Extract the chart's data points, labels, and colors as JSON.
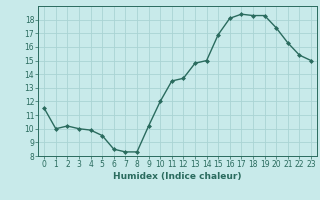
{
  "x": [
    0,
    1,
    2,
    3,
    4,
    5,
    6,
    7,
    8,
    9,
    10,
    11,
    12,
    13,
    14,
    15,
    16,
    17,
    18,
    19,
    20,
    21,
    22,
    23
  ],
  "y": [
    11.5,
    10.0,
    10.2,
    10.0,
    9.9,
    9.5,
    8.5,
    8.3,
    8.3,
    10.2,
    12.0,
    13.5,
    13.7,
    14.8,
    15.0,
    16.9,
    18.1,
    18.4,
    18.3,
    18.3,
    17.4,
    16.3,
    15.4,
    15.0
  ],
  "line_color": "#2a6b5e",
  "marker": "D",
  "markersize": 2,
  "linewidth": 1.0,
  "bg_color": "#c8eaea",
  "grid_color": "#aad4d4",
  "xlabel": "Humidex (Indice chaleur)",
  "xlim": [
    -0.5,
    23.5
  ],
  "ylim": [
    8,
    19
  ],
  "yticks": [
    8,
    9,
    10,
    11,
    12,
    13,
    14,
    15,
    16,
    17,
    18
  ],
  "xticks": [
    0,
    1,
    2,
    3,
    4,
    5,
    6,
    7,
    8,
    9,
    10,
    11,
    12,
    13,
    14,
    15,
    16,
    17,
    18,
    19,
    20,
    21,
    22,
    23
  ],
  "tick_color": "#2a6b5e",
  "xlabel_fontsize": 6.5,
  "tick_fontsize": 5.5
}
